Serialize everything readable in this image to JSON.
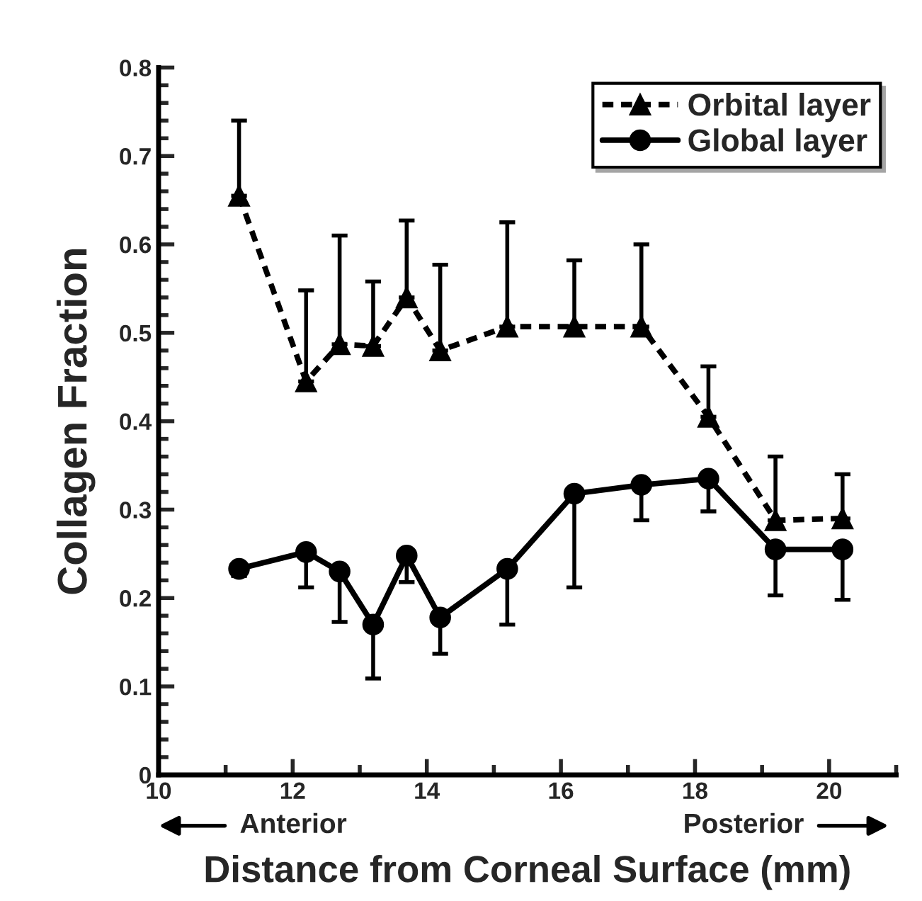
{
  "chart_data": {
    "type": "line",
    "xlabel": "Distance from Corneal Surface (mm)",
    "ylabel": "Collagen Fraction",
    "x": [
      11.2,
      12.2,
      12.7,
      13.2,
      13.7,
      14.2,
      15.2,
      16.2,
      17.2,
      18.2,
      19.2,
      20.2
    ],
    "series": [
      {
        "name": "Orbital layer",
        "color": "#000000",
        "marker": "triangle",
        "line_style": "dashed",
        "values": [
          0.655,
          0.445,
          0.487,
          0.485,
          0.54,
          0.48,
          0.507,
          0.507,
          0.507,
          0.405,
          0.288,
          0.29
        ],
        "errors": [
          [
            0.655,
            0.74
          ],
          [
            0.445,
            0.548
          ],
          [
            0.487,
            0.61
          ],
          [
            0.485,
            0.558
          ],
          [
            0.54,
            0.627
          ],
          [
            0.48,
            0.577
          ],
          [
            0.507,
            0.625
          ],
          [
            0.507,
            0.582
          ],
          [
            0.507,
            0.6
          ],
          [
            0.405,
            0.462
          ],
          [
            0.288,
            0.36
          ],
          [
            0.29,
            0.34
          ]
        ]
      },
      {
        "name": "Global layer",
        "color": "#000000",
        "marker": "circle",
        "line_style": "solid",
        "values": [
          0.233,
          0.252,
          0.23,
          0.17,
          0.248,
          0.178,
          0.233,
          0.318,
          0.328,
          0.335,
          0.255,
          0.255
        ],
        "errors": [
          [
            0.225,
            0.233
          ],
          [
            0.212,
            0.252
          ],
          [
            0.173,
            0.23
          ],
          [
            0.109,
            0.17
          ],
          [
            0.218,
            0.248
          ],
          [
            0.137,
            0.178
          ],
          [
            0.17,
            0.233
          ],
          [
            0.212,
            0.318
          ],
          [
            0.288,
            0.328
          ],
          [
            0.298,
            0.335
          ],
          [
            0.203,
            0.255
          ],
          [
            0.198,
            0.255
          ]
        ]
      }
    ],
    "xlim": [
      10,
      21
    ],
    "xticks": [
      10,
      12,
      14,
      16,
      18,
      20
    ],
    "ylim": [
      0,
      0.8
    ],
    "yticks": [
      0,
      0.1,
      0.2,
      0.3,
      0.4,
      0.5,
      0.6,
      0.7,
      0.8
    ],
    "grid": false,
    "legend": "top right",
    "annotations": [
      "Anterior",
      "Posterior"
    ]
  }
}
